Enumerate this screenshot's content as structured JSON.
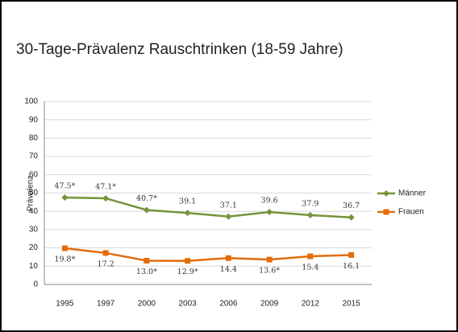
{
  "chart_data": {
    "type": "line",
    "title": "30-Tage-Prävalenz Rauschtrinken (18-59 Jahre)",
    "y_label": "Prävalenz",
    "categories": [
      "1995",
      "1997",
      "2000",
      "2003",
      "2006",
      "2009",
      "2012",
      "2015"
    ],
    "series": [
      {
        "name": "Männer",
        "color": "#77933c",
        "marker": "diamond",
        "values": [
          47.5,
          47.1,
          40.7,
          39.1,
          37.1,
          39.6,
          37.9,
          36.7
        ],
        "value_labels": [
          "47.5*",
          "47.1*",
          "40.7*",
          "39.1",
          "37.1",
          "39.6",
          "37.9",
          "36.7"
        ]
      },
      {
        "name": "Frauen",
        "color": "#e46c0a",
        "marker": "square",
        "values": [
          19.8,
          17.2,
          13.0,
          12.9,
          14.4,
          13.6,
          15.4,
          16.1
        ],
        "value_labels": [
          "19.8*",
          "17.2",
          "13.0*",
          "12.9*",
          "14.4",
          "13.6*",
          "15.4",
          "16.1"
        ]
      }
    ],
    "ylim": [
      0,
      100
    ],
    "yticks": [
      0,
      10,
      20,
      30,
      40,
      50,
      60,
      70,
      80,
      90,
      100
    ],
    "grid": true,
    "legend": "right"
  }
}
